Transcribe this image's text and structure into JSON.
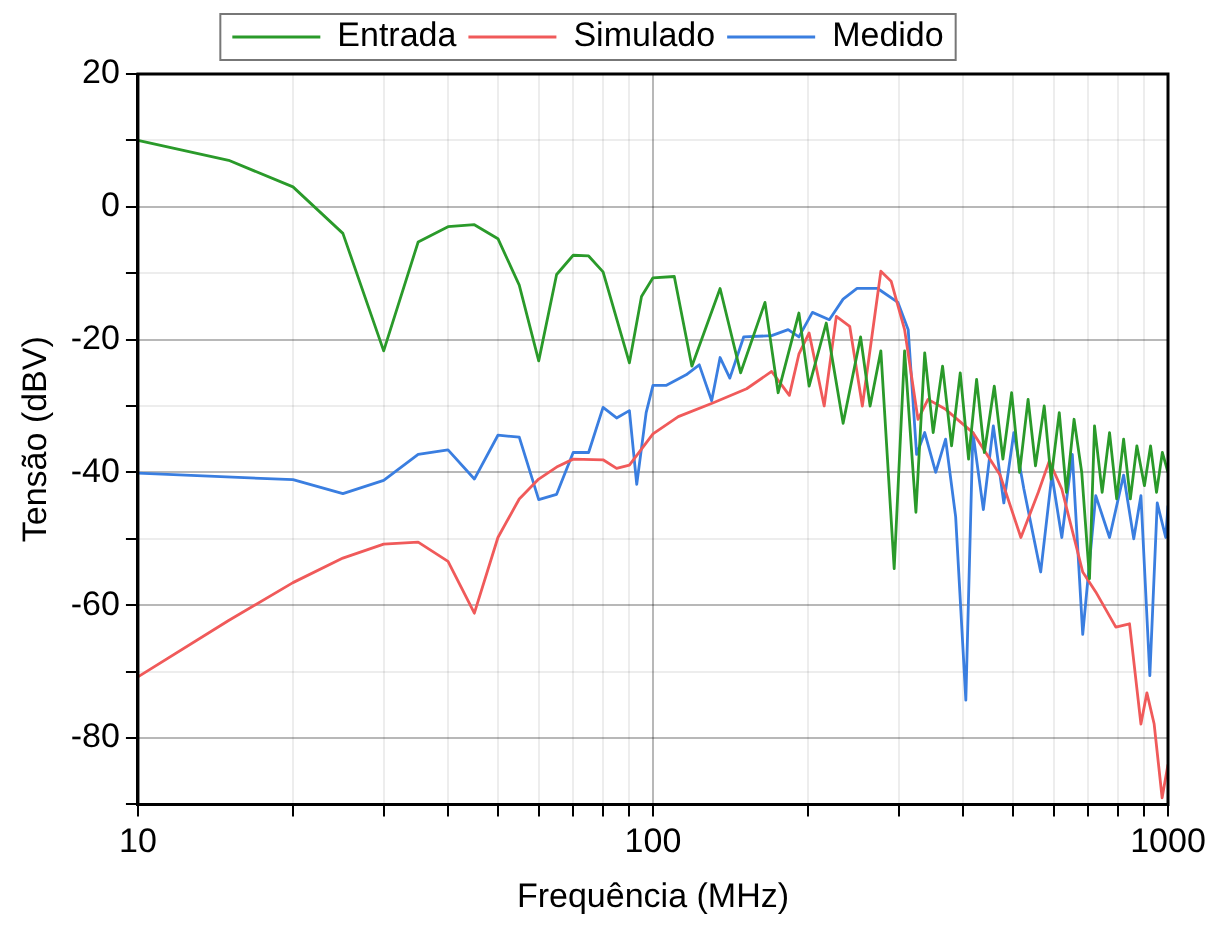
{
  "chart_data": {
    "type": "line",
    "xlabel": "Frequência (MHz)",
    "ylabel": "Tensão (dBV)",
    "log": "x",
    "xlim": [
      10,
      1000
    ],
    "ylim": [
      -90,
      20
    ],
    "xticks": [
      10,
      {
        "value": 20,
        "label": null
      },
      {
        "value": 30,
        "label": null
      },
      {
        "value": 40,
        "label": null
      },
      {
        "value": 50,
        "label": null
      },
      {
        "value": 60,
        "label": null
      },
      {
        "value": 70,
        "label": null
      },
      {
        "value": 80,
        "label": null
      },
      {
        "value": 90,
        "label": null
      },
      100,
      {
        "value": 200,
        "label": null
      },
      {
        "value": 300,
        "label": null
      },
      {
        "value": 400,
        "label": null
      },
      {
        "value": 500,
        "label": null
      },
      {
        "value": 600,
        "label": null
      },
      {
        "value": 700,
        "label": null
      },
      {
        "value": 800,
        "label": null
      },
      {
        "value": 900,
        "label": null
      },
      1000
    ],
    "yticks": [
      {
        "value": -90,
        "label": null
      },
      -80,
      {
        "value": -70,
        "label": null
      },
      -60,
      {
        "value": -50,
        "label": null
      },
      -40,
      {
        "value": -30,
        "label": null
      },
      -20,
      {
        "value": -10,
        "label": null
      },
      0,
      {
        "value": 10,
        "label": null
      },
      20
    ],
    "grid": true,
    "legend": "top",
    "marker": "none",
    "line_style": "solid",
    "series": [
      {
        "name": "Entrada",
        "color": "#2a9a2a",
        "x": [
          10,
          15,
          20,
          25,
          30,
          35,
          40,
          45,
          50,
          55,
          60,
          65,
          70,
          75,
          80,
          90,
          95,
          100,
          110,
          119,
          135,
          148,
          165,
          175,
          192,
          201,
          217,
          234,
          253,
          264,
          277,
          294,
          308,
          324,
          337,
          350,
          365,
          380,
          395,
          410,
          425,
          440,
          460,
          478,
          497,
          515,
          535,
          553,
          575,
          593,
          615,
          635,
          657,
          680,
          704,
          720,
          745,
          770,
          795,
          820,
          845,
          870,
          900,
          925,
          950,
          975,
          1000
        ],
        "values": [
          10,
          7,
          3,
          -4,
          -21.7,
          -5.3,
          -3,
          -2.7,
          -4.8,
          -11.8,
          -23.2,
          -10.2,
          -7.3,
          -7.4,
          -9.8,
          -23.5,
          -13.5,
          -10.7,
          -10.5,
          -24,
          -12.3,
          -25,
          -14.4,
          -28,
          -16,
          -27,
          -17.5,
          -32.6,
          -19.6,
          -30,
          -21.7,
          -54.5,
          -21.7,
          -46,
          -22,
          -34,
          -24,
          -36,
          -25,
          -38,
          -26,
          -37,
          -27,
          -38,
          -28,
          -40,
          -29,
          -39,
          -30,
          -41,
          -31,
          -43,
          -32,
          -40,
          -56,
          -33,
          -43,
          -34,
          -44,
          -35,
          -44,
          -36,
          -42,
          -36,
          -43,
          -37,
          -40
        ]
      },
      {
        "name": "Simulado",
        "color": "#f05a5a",
        "x": [
          10,
          15,
          20,
          25,
          30,
          35,
          40,
          45,
          50,
          55,
          60,
          65,
          70,
          80,
          85,
          90,
          100,
          112,
          131,
          152,
          170,
          178,
          184,
          192,
          201,
          215,
          227,
          241,
          255,
          277,
          290,
          308,
          327,
          342,
          370,
          418,
          472,
          518,
          560,
          588,
          622,
          683,
          724,
          792,
          842,
          886,
          910,
          940,
          974,
          1000
        ],
        "values": [
          -70.8,
          -62.3,
          -56.6,
          -52.9,
          -50.8,
          -50.5,
          -53.4,
          -61.2,
          -49.8,
          -44,
          -41,
          -39.2,
          -38,
          -38.1,
          -39.4,
          -38.9,
          -34.2,
          -31.6,
          -29.5,
          -27.4,
          -24.8,
          -26.9,
          -28.4,
          -22.2,
          -19,
          -30,
          -16.5,
          -18,
          -30,
          -9.7,
          -11.2,
          -18.5,
          -32,
          -29,
          -30.5,
          -34,
          -40.4,
          -49.8,
          -43,
          -38.3,
          -42.5,
          -55,
          -58,
          -63.3,
          -62.8,
          -77.9,
          -73.2,
          -77.9,
          -89,
          -84
        ]
      },
      {
        "name": "Medido",
        "color": "#3a7ee0",
        "x": [
          10,
          20,
          25,
          30,
          35,
          40,
          45,
          50,
          55,
          60,
          65,
          70,
          75,
          80,
          85,
          90,
          93,
          97,
          100,
          106,
          116,
          123,
          130,
          135,
          141,
          150,
          170,
          183,
          192,
          204,
          220,
          234,
          249,
          273,
          299,
          313,
          325,
          337,
          354,
          370,
          387,
          405,
          418,
          438,
          458,
          480,
          502,
          525,
          566,
          595,
          622,
          652,
          683,
          724,
          770,
          820,
          858,
          886,
          922,
          953,
          990,
          1000
        ],
        "values": [
          -40.1,
          -41.1,
          -43.2,
          -41.2,
          -37.3,
          -36.6,
          -41,
          -34.4,
          -34.7,
          -44.1,
          -43.3,
          -37,
          -37,
          -30.2,
          -31.8,
          -30.7,
          -41.8,
          -31,
          -26.9,
          -26.9,
          -25.3,
          -23.8,
          -29.2,
          -22.7,
          -25.8,
          -19.6,
          -19.4,
          -18.5,
          -19.6,
          -15.9,
          -17,
          -13.9,
          -12.3,
          -12.3,
          -14.4,
          -18.5,
          -37.3,
          -34,
          -40,
          -35,
          -46.7,
          -74.3,
          -34,
          -45.6,
          -33,
          -44.6,
          -34,
          -42.5,
          -55,
          -40.4,
          -49.8,
          -37.3,
          -64.4,
          -43.5,
          -49.8,
          -40.4,
          -50,
          -43.5,
          -70.6,
          -44.6,
          -49.8,
          -45
        ]
      }
    ]
  }
}
